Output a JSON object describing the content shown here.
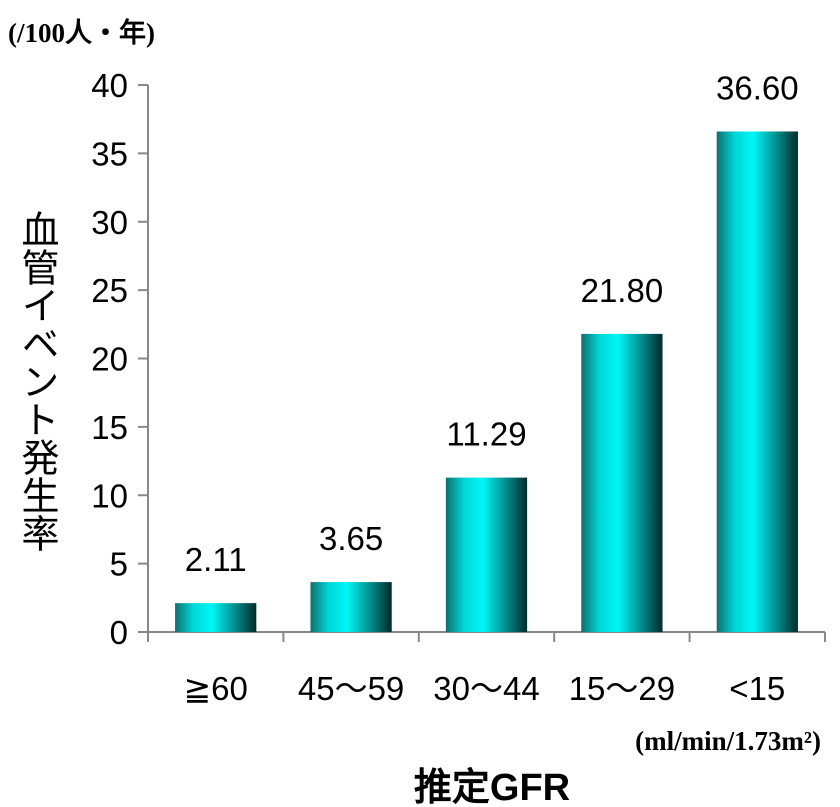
{
  "chart_data": {
    "type": "bar",
    "unit_label": "(/100人・年)",
    "ylabel": "血管イベント発生率",
    "xlabel": "推定GFR",
    "x_unit": "(ml/min/1.73m²)",
    "categories": [
      "≧60",
      "45～59",
      "30～44",
      "15～29",
      "<15"
    ],
    "values": [
      2.11,
      3.65,
      11.29,
      21.8,
      36.6
    ],
    "value_labels": [
      "2.11",
      "3.65",
      "11.29",
      "21.80",
      "36.60"
    ],
    "ylim": [
      0,
      40
    ],
    "yticks": [
      "0",
      "5",
      "10",
      "15",
      "20",
      "25",
      "30",
      "35",
      "40"
    ],
    "bar_colors": {
      "light": "#00f7f7",
      "dark": "#002a2a"
    },
    "grid": false
  }
}
